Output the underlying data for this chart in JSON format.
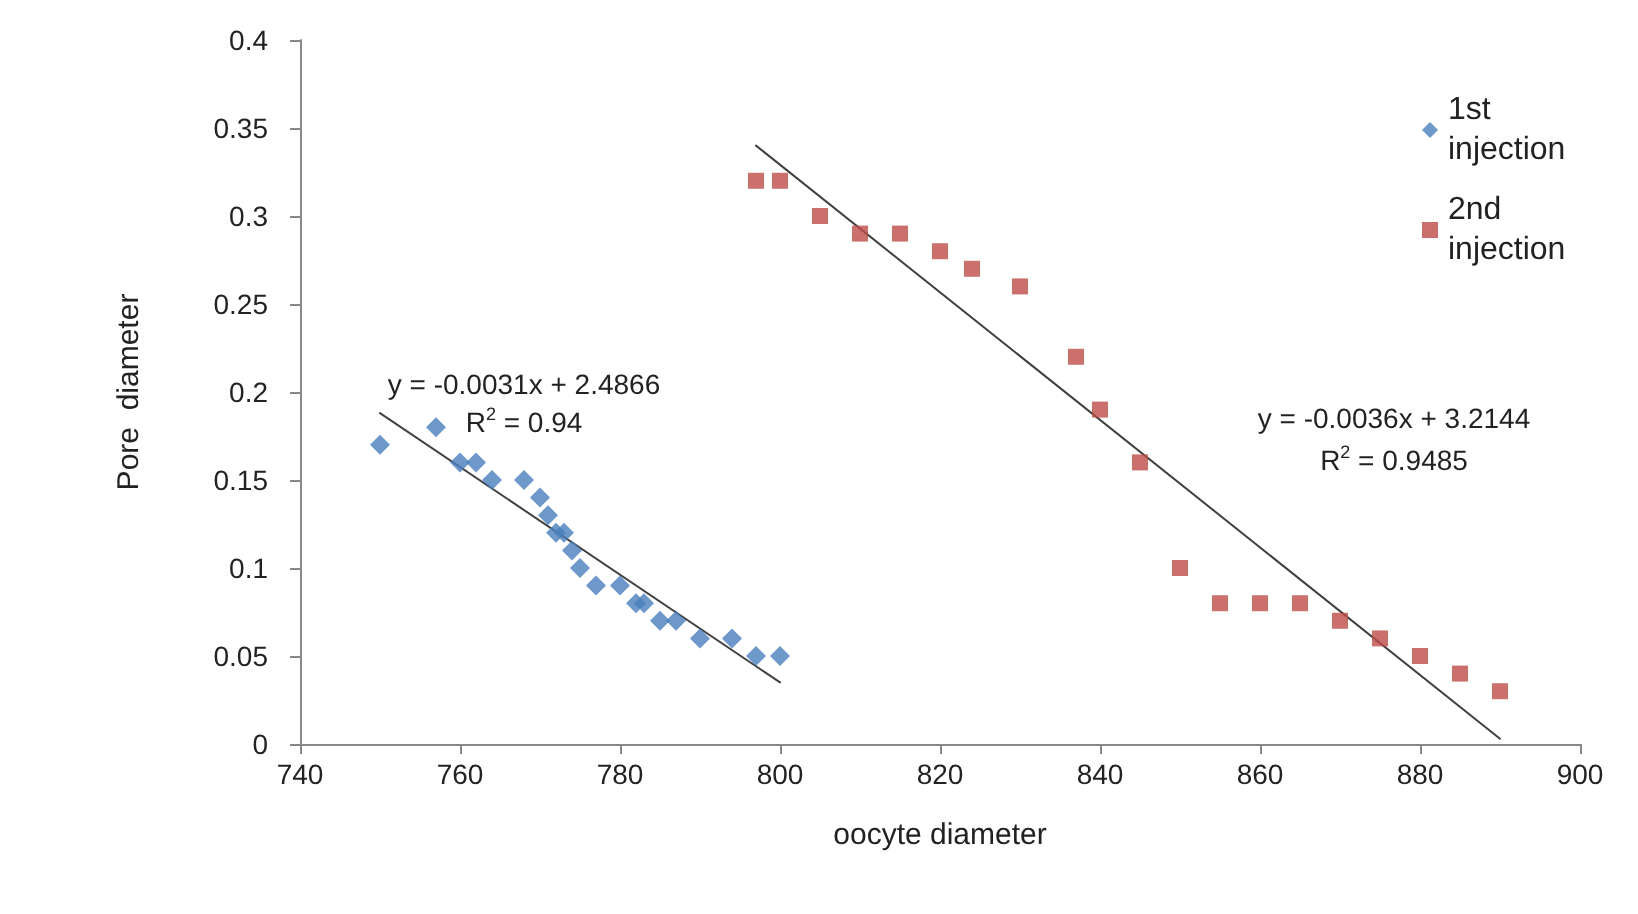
{
  "chart_data": {
    "type": "scatter",
    "xlabel": "oocyte diameter",
    "ylabel": "Pore  diameter",
    "xlim": [
      740,
      900
    ],
    "xticks": [
      740,
      760,
      780,
      800,
      820,
      840,
      860,
      880,
      900
    ],
    "ylim": [
      0,
      0.4
    ],
    "yticks": [
      0,
      0.05,
      0.1,
      0.15,
      0.2,
      0.25,
      0.3,
      0.35,
      0.4
    ],
    "grid": false,
    "legend": "top right",
    "series": [
      {
        "name": "1st injection",
        "color": "#4a7ebb",
        "marker": "diamond",
        "x": [
          750,
          757,
          760,
          762,
          764,
          768,
          770,
          771,
          772,
          773,
          774,
          775,
          777,
          780,
          782,
          783,
          785,
          787,
          790,
          794,
          797,
          800
        ],
        "values": [
          0.17,
          0.18,
          0.16,
          0.16,
          0.15,
          0.15,
          0.14,
          0.13,
          0.12,
          0.12,
          0.11,
          0.1,
          0.09,
          0.09,
          0.08,
          0.08,
          0.07,
          0.07,
          0.06,
          0.06,
          0.05,
          0.05
        ]
      },
      {
        "name": "2nd injection",
        "color": "#be4b48",
        "marker": "square",
        "x": [
          797,
          800,
          805,
          810,
          815,
          820,
          824,
          830,
          837,
          840,
          845,
          850,
          855,
          860,
          865,
          870,
          875,
          880,
          885,
          890
        ],
        "values": [
          0.32,
          0.32,
          0.3,
          0.29,
          0.29,
          0.28,
          0.27,
          0.26,
          0.22,
          0.19,
          0.16,
          0.1,
          0.08,
          0.08,
          0.08,
          0.07,
          0.06,
          0.05,
          0.04,
          0.03
        ]
      },
      {
        "type": "line",
        "color": "#404040",
        "marker": "none",
        "x": [
          750,
          800
        ],
        "values": [
          0.188,
          0.035
        ]
      },
      {
        "type": "line",
        "color": "#404040",
        "marker": "none",
        "x": [
          797,
          890
        ],
        "values": [
          0.34,
          0.003
        ]
      }
    ],
    "annotations": [
      "y = -0.0031x + 2.4866",
      "R$^{2}$ = 0.94",
      "y = -0.0036x + 3.2144",
      "R$^{2}$ = 0.9485"
    ]
  }
}
